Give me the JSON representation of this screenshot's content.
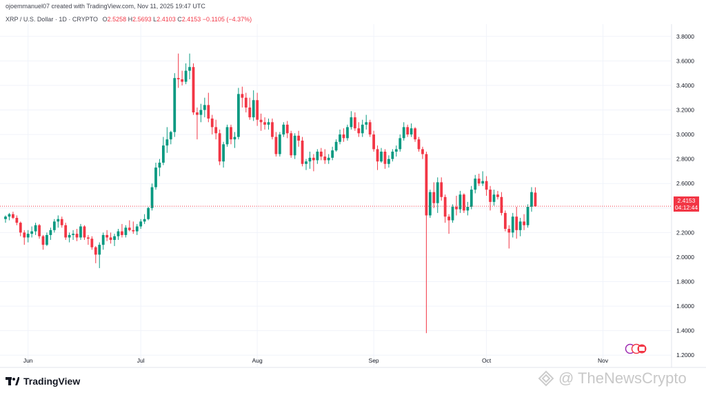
{
  "header": {
    "creator": "ojoemmanuel07 created with TradingView.com, Nov 11, 2025 19:47 UTC",
    "symbol": "XRP / U.S. Dollar · 1D · CRYPTO",
    "ohlc": {
      "o_label": "O",
      "o": "2.5258",
      "h_label": "H",
      "h": "2.5693",
      "l_label": "L",
      "l": "2.4103",
      "c_label": "C",
      "c": "2.4153",
      "change": "−0.1105 (−4.37%)"
    }
  },
  "price_tag": {
    "price": "2.4153",
    "countdown": "04:12:44"
  },
  "brand": {
    "name": "TradingView"
  },
  "watermark": {
    "text": "@ TheNewsCrypto"
  },
  "colors": {
    "up": "#089981",
    "down": "#f23645",
    "grid": "#f0f3fa",
    "axis_text": "#131722"
  },
  "chart_data": {
    "type": "candlestick",
    "title": "XRP / U.S. Dollar · 1D · CRYPTO",
    "xlabel": "",
    "ylabel": "",
    "ylim": [
      1.1,
      3.9
    ],
    "yticks": [
      1.2,
      1.4,
      1.6,
      1.8,
      2.0,
      2.2,
      2.4,
      2.6,
      2.8,
      3.0,
      3.2,
      3.4,
      3.6,
      3.8
    ],
    "ytick_labels": [
      "1.2000",
      "1.4000",
      "1.6000",
      "1.8000",
      "2.0000",
      "2.2000",
      "2.4000",
      "2.6000",
      "2.8000",
      "3.0000",
      "3.2000",
      "3.4000",
      "3.6000",
      "3.8000"
    ],
    "month_labels": [
      {
        "label": "Jun",
        "day": 6
      },
      {
        "label": "Jul",
        "day": 36
      },
      {
        "label": "Aug",
        "day": 67
      },
      {
        "label": "Sep",
        "day": 98
      },
      {
        "label": "Oct",
        "day": 128
      },
      {
        "label": "Nov",
        "day": 159
      }
    ],
    "current_price": 2.4153,
    "grid": true,
    "candles": [
      [
        2.31,
        2.34,
        2.28,
        2.33
      ],
      [
        2.33,
        2.36,
        2.3,
        2.35
      ],
      [
        2.35,
        2.37,
        2.31,
        2.32
      ],
      [
        2.32,
        2.34,
        2.26,
        2.28
      ],
      [
        2.28,
        2.29,
        2.17,
        2.2
      ],
      [
        2.2,
        2.22,
        2.1,
        2.16
      ],
      [
        2.16,
        2.22,
        2.12,
        2.19
      ],
      [
        2.19,
        2.25,
        2.16,
        2.21
      ],
      [
        2.21,
        2.28,
        2.18,
        2.26
      ],
      [
        2.26,
        2.27,
        2.15,
        2.17
      ],
      [
        2.17,
        2.18,
        2.06,
        2.1
      ],
      [
        2.1,
        2.2,
        2.09,
        2.18
      ],
      [
        2.18,
        2.24,
        2.14,
        2.22
      ],
      [
        2.22,
        2.31,
        2.2,
        2.29
      ],
      [
        2.29,
        2.34,
        2.24,
        2.31
      ],
      [
        2.31,
        2.33,
        2.24,
        2.26
      ],
      [
        2.26,
        2.28,
        2.14,
        2.16
      ],
      [
        2.16,
        2.2,
        2.12,
        2.18
      ],
      [
        2.18,
        2.22,
        2.14,
        2.19
      ],
      [
        2.19,
        2.23,
        2.13,
        2.16
      ],
      [
        2.16,
        2.27,
        2.14,
        2.25
      ],
      [
        2.25,
        2.26,
        2.14,
        2.16
      ],
      [
        2.16,
        2.18,
        2.1,
        2.15
      ],
      [
        2.15,
        2.17,
        2.06,
        2.08
      ],
      [
        2.08,
        2.09,
        1.95,
        2.02
      ],
      [
        2.02,
        2.12,
        1.91,
        2.1
      ],
      [
        2.1,
        2.2,
        2.06,
        2.18
      ],
      [
        2.18,
        2.22,
        2.13,
        2.16
      ],
      [
        2.16,
        2.2,
        2.11,
        2.14
      ],
      [
        2.14,
        2.19,
        2.09,
        2.17
      ],
      [
        2.17,
        2.23,
        2.14,
        2.21
      ],
      [
        2.21,
        2.27,
        2.16,
        2.18
      ],
      [
        2.18,
        2.26,
        2.16,
        2.24
      ],
      [
        2.24,
        2.3,
        2.21,
        2.22
      ],
      [
        2.22,
        2.29,
        2.19,
        2.21
      ],
      [
        2.21,
        2.27,
        2.18,
        2.25
      ],
      [
        2.25,
        2.31,
        2.23,
        2.29
      ],
      [
        2.29,
        2.35,
        2.27,
        2.31
      ],
      [
        2.31,
        2.41,
        2.3,
        2.4
      ],
      [
        2.4,
        2.6,
        2.38,
        2.57
      ],
      [
        2.57,
        2.77,
        2.55,
        2.73
      ],
      [
        2.73,
        2.8,
        2.66,
        2.77
      ],
      [
        2.77,
        2.98,
        2.75,
        2.91
      ],
      [
        2.91,
        3.06,
        2.85,
        2.96
      ],
      [
        2.96,
        3.03,
        2.92,
        3.02
      ],
      [
        3.02,
        3.5,
        2.98,
        3.46
      ],
      [
        3.46,
        3.66,
        3.38,
        3.45
      ],
      [
        3.45,
        3.52,
        3.4,
        3.43
      ],
      [
        3.43,
        3.58,
        3.41,
        3.52
      ],
      [
        3.52,
        3.66,
        3.45,
        3.55
      ],
      [
        3.55,
        3.58,
        3.16,
        3.18
      ],
      [
        3.18,
        3.22,
        2.96,
        3.16
      ],
      [
        3.16,
        3.25,
        3.1,
        3.2
      ],
      [
        3.2,
        3.3,
        3.14,
        3.24
      ],
      [
        3.24,
        3.34,
        3.1,
        3.13
      ],
      [
        3.13,
        3.16,
        3.0,
        3.06
      ],
      [
        3.06,
        3.12,
        2.96,
        3.01
      ],
      [
        3.01,
        3.04,
        2.75,
        2.78
      ],
      [
        2.78,
        2.94,
        2.73,
        2.92
      ],
      [
        2.92,
        3.08,
        2.9,
        3.06
      ],
      [
        3.06,
        3.08,
        2.92,
        2.96
      ],
      [
        2.96,
        3.02,
        2.89,
        2.98
      ],
      [
        2.98,
        3.38,
        2.96,
        3.33
      ],
      [
        3.33,
        3.39,
        3.22,
        3.3
      ],
      [
        3.3,
        3.34,
        3.18,
        3.22
      ],
      [
        3.22,
        3.3,
        3.12,
        3.14
      ],
      [
        3.14,
        3.36,
        3.11,
        3.28
      ],
      [
        3.28,
        3.34,
        3.07,
        3.12
      ],
      [
        3.12,
        3.17,
        3.03,
        3.1
      ],
      [
        3.1,
        3.14,
        3.04,
        3.08
      ],
      [
        3.08,
        3.13,
        3.04,
        3.1
      ],
      [
        3.1,
        3.13,
        2.96,
        2.98
      ],
      [
        2.98,
        3.02,
        2.82,
        2.84
      ],
      [
        2.84,
        3.02,
        2.82,
        3.0
      ],
      [
        3.0,
        3.1,
        2.98,
        3.08
      ],
      [
        3.08,
        3.11,
        2.97,
        3.01
      ],
      [
        3.01,
        3.03,
        2.81,
        2.83
      ],
      [
        2.83,
        3.01,
        2.8,
        2.99
      ],
      [
        2.99,
        3.03,
        2.9,
        2.95
      ],
      [
        2.95,
        2.98,
        2.74,
        2.76
      ],
      [
        2.76,
        2.8,
        2.71,
        2.78
      ],
      [
        2.78,
        2.86,
        2.72,
        2.81
      ],
      [
        2.81,
        2.84,
        2.7,
        2.79
      ],
      [
        2.79,
        2.88,
        2.76,
        2.86
      ],
      [
        2.86,
        2.89,
        2.79,
        2.82
      ],
      [
        2.82,
        2.88,
        2.76,
        2.79
      ],
      [
        2.79,
        2.84,
        2.76,
        2.81
      ],
      [
        2.81,
        2.9,
        2.79,
        2.87
      ],
      [
        2.87,
        2.96,
        2.86,
        2.94
      ],
      [
        2.94,
        3.04,
        2.92,
        3.0
      ],
      [
        3.0,
        3.05,
        2.94,
        2.97
      ],
      [
        2.97,
        3.08,
        2.95,
        3.06
      ],
      [
        3.06,
        3.19,
        3.04,
        3.14
      ],
      [
        3.14,
        3.18,
        3.03,
        3.05
      ],
      [
        3.05,
        3.1,
        2.98,
        3.01
      ],
      [
        3.01,
        3.12,
        2.98,
        3.08
      ],
      [
        3.08,
        3.16,
        3.04,
        3.1
      ],
      [
        3.1,
        3.12,
        2.98,
        3.0
      ],
      [
        3.0,
        3.03,
        2.86,
        2.88
      ],
      [
        2.88,
        2.91,
        2.71,
        2.78
      ],
      [
        2.78,
        2.89,
        2.77,
        2.86
      ],
      [
        2.86,
        2.88,
        2.72,
        2.76
      ],
      [
        2.76,
        2.83,
        2.73,
        2.8
      ],
      [
        2.8,
        2.88,
        2.78,
        2.86
      ],
      [
        2.86,
        2.91,
        2.82,
        2.88
      ],
      [
        2.88,
        3.0,
        2.86,
        2.97
      ],
      [
        2.97,
        3.1,
        2.95,
        3.06
      ],
      [
        3.06,
        3.08,
        2.98,
        3.0
      ],
      [
        3.0,
        3.09,
        2.98,
        3.05
      ],
      [
        3.05,
        3.06,
        2.94,
        2.96
      ],
      [
        2.96,
        2.98,
        2.86,
        2.88
      ],
      [
        2.88,
        2.9,
        2.8,
        2.84
      ],
      [
        2.84,
        2.86,
        1.38,
        2.34
      ],
      [
        2.34,
        2.55,
        2.32,
        2.53
      ],
      [
        2.53,
        2.61,
        2.4,
        2.44
      ],
      [
        2.44,
        2.65,
        2.36,
        2.61
      ],
      [
        2.61,
        2.65,
        2.46,
        2.49
      ],
      [
        2.49,
        2.51,
        2.28,
        2.33
      ],
      [
        2.33,
        2.35,
        2.19,
        2.3
      ],
      [
        2.3,
        2.43,
        2.28,
        2.41
      ],
      [
        2.41,
        2.5,
        2.34,
        2.39
      ],
      [
        2.39,
        2.54,
        2.36,
        2.51
      ],
      [
        2.51,
        2.52,
        2.36,
        2.38
      ],
      [
        2.38,
        2.45,
        2.34,
        2.41
      ],
      [
        2.41,
        2.58,
        2.39,
        2.55
      ],
      [
        2.55,
        2.67,
        2.52,
        2.64
      ],
      [
        2.64,
        2.68,
        2.58,
        2.6
      ],
      [
        2.6,
        2.7,
        2.58,
        2.62
      ],
      [
        2.62,
        2.66,
        2.5,
        2.55
      ],
      [
        2.55,
        2.58,
        2.38,
        2.45
      ],
      [
        2.45,
        2.55,
        2.42,
        2.51
      ],
      [
        2.51,
        2.54,
        2.47,
        2.49
      ],
      [
        2.49,
        2.53,
        2.34,
        2.36
      ],
      [
        2.36,
        2.38,
        2.21,
        2.23
      ],
      [
        2.23,
        2.26,
        2.07,
        2.2
      ],
      [
        2.2,
        2.36,
        2.16,
        2.33
      ],
      [
        2.33,
        2.41,
        2.15,
        2.22
      ],
      [
        2.22,
        2.32,
        2.17,
        2.29
      ],
      [
        2.29,
        2.35,
        2.22,
        2.26
      ],
      [
        2.26,
        2.43,
        2.24,
        2.41
      ],
      [
        2.41,
        2.57,
        2.37,
        2.53
      ],
      [
        2.5258,
        2.5693,
        2.4103,
        2.4153
      ]
    ]
  }
}
